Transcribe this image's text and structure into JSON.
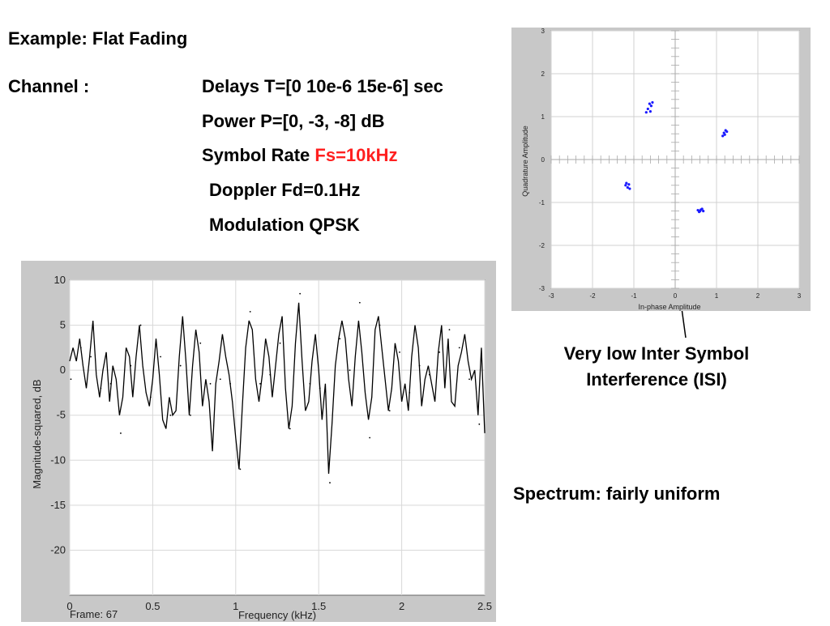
{
  "slide": {
    "title": "Example: Flat Fading",
    "channel_label": "Channel :",
    "delays": "Delays T=[0 10e-6 15e-6] sec",
    "power": "Power P=[0, -3, -8] dB",
    "symbol_rate_label": "Symbol Rate",
    "symbol_rate_value": "Fs=10kHz",
    "doppler": "Doppler Fd=0.1Hz",
    "modulation": "Modulation QPSK",
    "isi_note_line1": "Very low Inter Symbol",
    "isi_note_line2": "Interference (ISI)",
    "spectrum_note": "Spectrum: fairly uniform"
  },
  "chart_data": [
    {
      "type": "scatter",
      "xlabel": "In-phase Amplitude",
      "ylabel": "Quadrature Amplitude",
      "xlim": [
        -3,
        3
      ],
      "ylim": [
        -3,
        3
      ],
      "xticks": [
        "-3",
        "-2",
        "-1",
        "0",
        "1",
        "2",
        "3"
      ],
      "yticks": [
        "3",
        "2",
        "1",
        "0",
        "-1",
        "-2",
        "-3"
      ],
      "grid": true,
      "marker_color": "#1a1aff",
      "points": [
        {
          "x": -0.62,
          "y": 1.3
        },
        {
          "x": -0.58,
          "y": 1.25
        },
        {
          "x": -0.66,
          "y": 1.18
        },
        {
          "x": -0.55,
          "y": 1.33
        },
        {
          "x": -0.6,
          "y": 1.12
        },
        {
          "x": -0.7,
          "y": 1.1
        },
        {
          "x": -1.2,
          "y": -0.6
        },
        {
          "x": -1.15,
          "y": -0.65
        },
        {
          "x": -1.12,
          "y": -0.58
        },
        {
          "x": -1.18,
          "y": -0.55
        },
        {
          "x": -1.1,
          "y": -0.68
        },
        {
          "x": 1.18,
          "y": 0.62
        },
        {
          "x": 1.22,
          "y": 0.68
        },
        {
          "x": 1.2,
          "y": 0.58
        },
        {
          "x": 1.15,
          "y": 0.55
        },
        {
          "x": 1.25,
          "y": 0.65
        },
        {
          "x": 0.55,
          "y": -1.18
        },
        {
          "x": 0.6,
          "y": -1.2
        },
        {
          "x": 0.65,
          "y": -1.15
        },
        {
          "x": 0.58,
          "y": -1.22
        },
        {
          "x": 0.68,
          "y": -1.2
        },
        {
          "x": 0.62,
          "y": -1.17
        }
      ]
    },
    {
      "type": "line",
      "xlabel": "Frequency (kHz)",
      "ylabel": "Magnitude-squared, dB",
      "xlim": [
        0,
        2.5
      ],
      "ylim": [
        -25,
        10
      ],
      "xticks": [
        "0",
        "0.5",
        "1",
        "1.5",
        "2",
        "2.5"
      ],
      "yticks": [
        "10",
        "5",
        "0",
        "-5",
        "-10",
        "-15",
        "-20"
      ],
      "frame_label": "Frame: 67",
      "line_color": "#000000",
      "x": [
        0,
        0.02,
        0.04,
        0.06,
        0.08,
        0.1,
        0.12,
        0.14,
        0.16,
        0.18,
        0.2,
        0.22,
        0.24,
        0.26,
        0.28,
        0.3,
        0.32,
        0.34,
        0.36,
        0.38,
        0.4,
        0.42,
        0.44,
        0.46,
        0.48,
        0.5,
        0.52,
        0.54,
        0.56,
        0.58,
        0.6,
        0.62,
        0.64,
        0.66,
        0.68,
        0.7,
        0.72,
        0.74,
        0.76,
        0.78,
        0.8,
        0.82,
        0.84,
        0.86,
        0.88,
        0.9,
        0.92,
        0.94,
        0.96,
        0.98,
        1.0,
        1.02,
        1.04,
        1.06,
        1.08,
        1.1,
        1.12,
        1.14,
        1.16,
        1.18,
        1.2,
        1.22,
        1.24,
        1.26,
        1.28,
        1.3,
        1.32,
        1.34,
        1.36,
        1.38,
        1.4,
        1.42,
        1.44,
        1.46,
        1.48,
        1.5,
        1.52,
        1.54,
        1.56,
        1.58,
        1.6,
        1.62,
        1.64,
        1.66,
        1.68,
        1.7,
        1.72,
        1.74,
        1.76,
        1.78,
        1.8,
        1.82,
        1.84,
        1.86,
        1.88,
        1.9,
        1.92,
        1.94,
        1.96,
        1.98,
        2.0,
        2.02,
        2.04,
        2.06,
        2.08,
        2.1,
        2.12,
        2.14,
        2.16,
        2.18,
        2.2,
        2.22,
        2.24,
        2.26,
        2.28,
        2.3,
        2.32,
        2.34,
        2.36,
        2.38,
        2.4,
        2.42,
        2.44,
        2.46,
        2.48,
        2.5
      ],
      "y": [
        1,
        2.5,
        1,
        3.5,
        0.5,
        -2,
        1.5,
        5.5,
        -0.5,
        -3,
        0,
        2,
        -3.5,
        0.5,
        -1,
        -5,
        -3,
        2.5,
        1.5,
        -3,
        1.5,
        5,
        0.5,
        -2.5,
        -4,
        -1,
        3.5,
        -0.5,
        -5.5,
        -6.5,
        -3,
        -5,
        -4.5,
        1.5,
        6,
        1,
        -5,
        0.5,
        4.5,
        2,
        -4,
        -1,
        -3.5,
        -9,
        -1.5,
        1,
        4,
        1.5,
        -0.5,
        -3.5,
        -7.5,
        -11,
        -4,
        2.5,
        5.5,
        4.5,
        -1,
        -3.5,
        -0.5,
        3.5,
        1.5,
        -3,
        0.5,
        4,
        6,
        -2,
        -6.5,
        -4,
        3,
        7.5,
        1,
        -4.5,
        -3.5,
        1,
        4,
        0,
        -5.5,
        -1.5,
        -11.5,
        -6,
        0.5,
        3.5,
        5.5,
        3.5,
        -1,
        -4,
        1.5,
        5.5,
        2,
        -2.5,
        -5.5,
        -3,
        4.5,
        6,
        2.5,
        -1,
        -4.5,
        -2,
        3,
        1,
        -3.5,
        -1.5,
        -4.5,
        1.5,
        5,
        2.5,
        -4,
        -1,
        0.5,
        -1.5,
        -3.5,
        2,
        5,
        -2,
        3.5,
        -3.5,
        -4,
        0.5,
        2,
        4,
        1,
        -1,
        0,
        -5,
        2.5,
        -7
      ]
    }
  ]
}
